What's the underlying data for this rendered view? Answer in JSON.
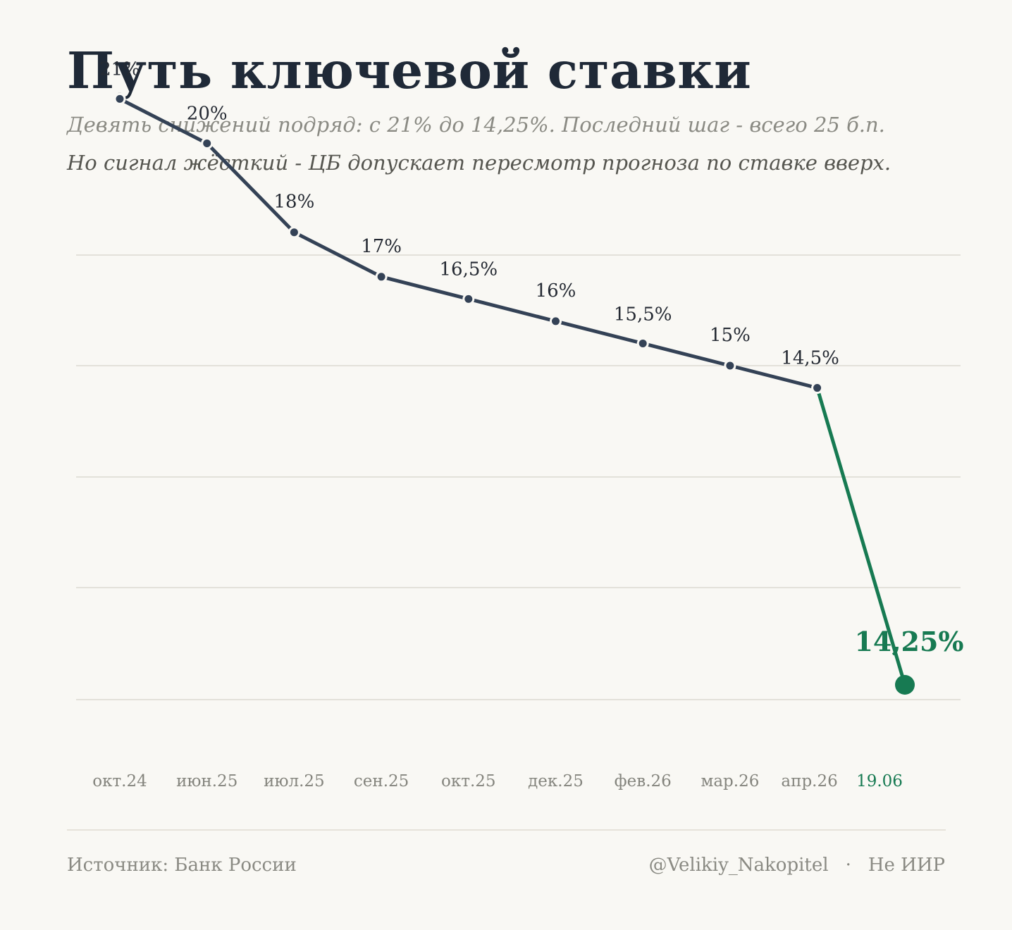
{
  "title": "Путь ключевой ставки",
  "subtitle": "Девять снижений подряд: с 21% до 14,25%. Последний шаг - всего 25 б.п.",
  "subtitle2": "Но сигнал жёсткий - ЦБ допускает пересмотр прогноза по ставке вверх.",
  "footer": {
    "source": "Источник: Банк России",
    "handle": "@Velikiy_Nakopitel",
    "separator": "·",
    "disclaimer": "Не ИИР"
  },
  "colors": {
    "line": "#344256",
    "highlight": "#177a52",
    "grid": "#e3e1da",
    "tick_text": "#85857e",
    "label_text": "#252a33"
  },
  "chart_data": {
    "type": "line",
    "title": "Путь ключевой ставки",
    "xlabel": "",
    "ylabel": "",
    "categories": [
      "окт.24",
      "июн.25",
      "июл.25",
      "сен.25",
      "окт.25",
      "дек.25",
      "фев.26",
      "мар.26",
      "апр.26",
      "19.06"
    ],
    "values": [
      21,
      20,
      18,
      17,
      16.5,
      16,
      15.5,
      15,
      14.5,
      14.25
    ],
    "labels": [
      "21%",
      "20%",
      "18%",
      "17%",
      "16,5%",
      "16%",
      "15,5%",
      "15%",
      "14,5%",
      "14,25%"
    ],
    "highlight_last": true,
    "ylim": [
      14,
      22
    ],
    "grid": true,
    "legend": "none"
  }
}
